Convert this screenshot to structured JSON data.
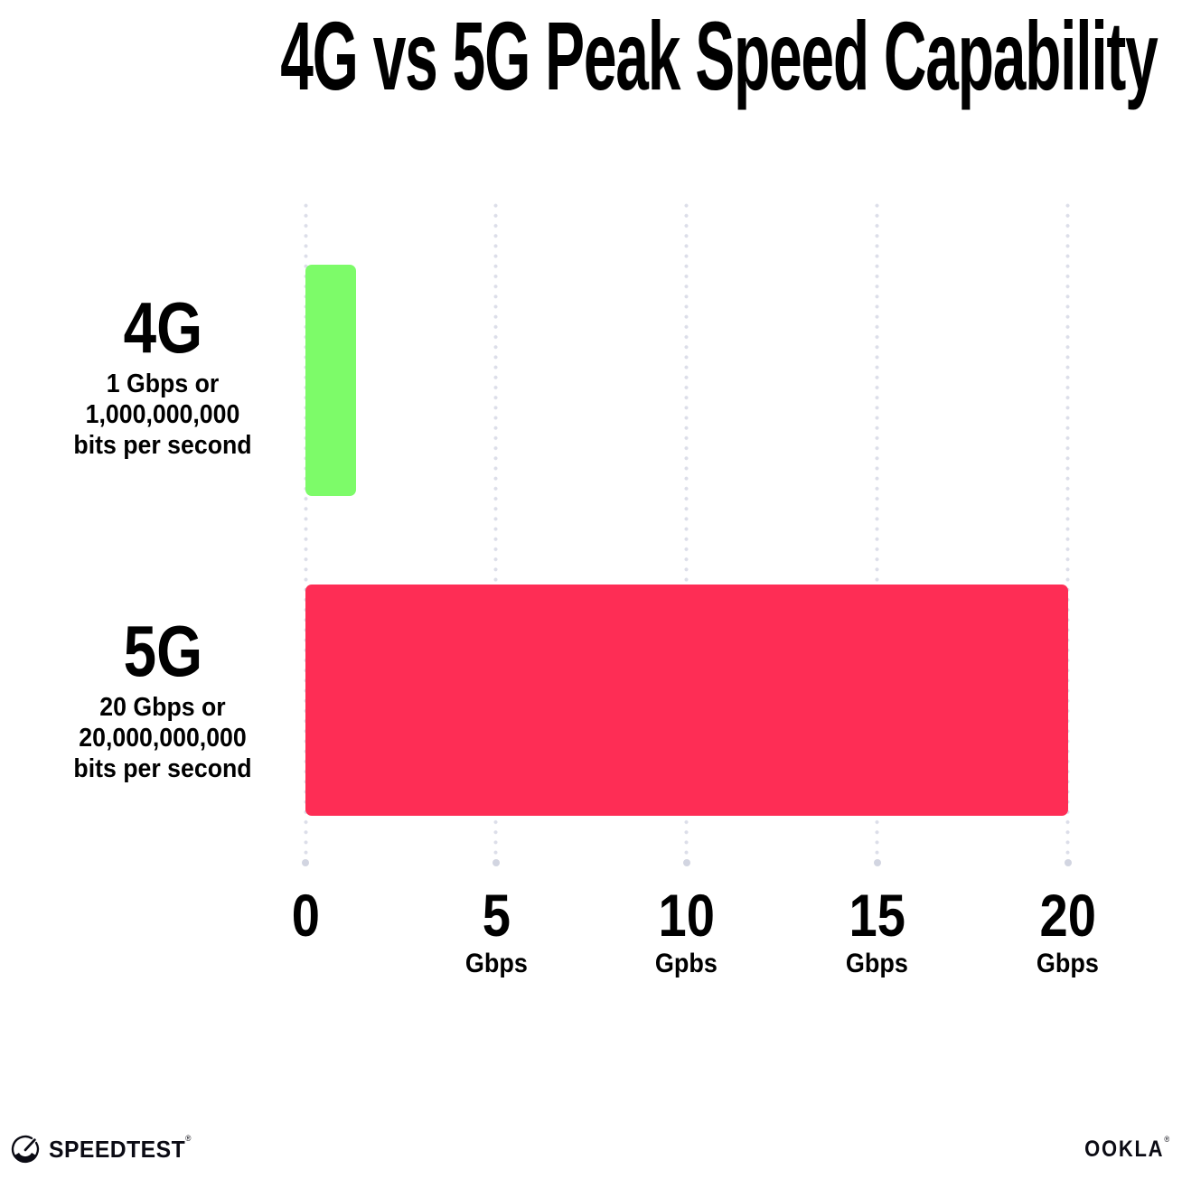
{
  "title": "4G vs 5G Peak Speed Capability",
  "chart_data": {
    "type": "bar",
    "orientation": "horizontal",
    "title": "4G vs 5G Peak Speed Capability",
    "categories": [
      "4G",
      "5G"
    ],
    "values": [
      1,
      20
    ],
    "value_unit": "Gbps",
    "bar_colors": [
      "#7dfb69",
      "#fe2d55"
    ],
    "category_sublabels": [
      [
        "1 Gbps or",
        "1,000,000,000",
        "bits per second"
      ],
      [
        "20 Gbps or",
        "20,000,000,000",
        "bits per second"
      ]
    ],
    "xlim": [
      0,
      20
    ],
    "x_ticks": [
      {
        "value": "0",
        "unit": ""
      },
      {
        "value": "5",
        "unit": "Gbps"
      },
      {
        "value": "10",
        "unit": "Gpbs"
      },
      {
        "value": "15",
        "unit": "Gbps"
      },
      {
        "value": "20",
        "unit": "Gbps"
      }
    ],
    "grid": "vertical dotted, light gray, large dot at axis base",
    "legend": "none"
  },
  "footer": {
    "speedtest_label": "SPEEDTEST",
    "speedtest_reg": "®",
    "ookla_label": "OOKLA",
    "ookla_reg": "®"
  },
  "colors": {
    "background": "#ffffff",
    "text": "#000000",
    "grid_dot": "#dcdee9",
    "axis_dot": "#d2d5e1",
    "bar_4g_green": "#7dfb69",
    "bar_5g_pink": "#fe2d55"
  }
}
